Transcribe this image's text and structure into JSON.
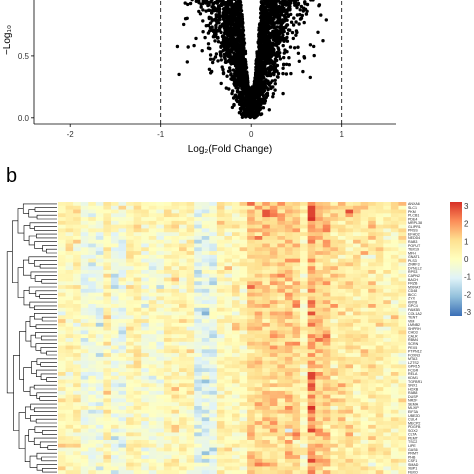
{
  "panel_a": {
    "label": "",
    "chart_data": {
      "type": "scatter",
      "title": "",
      "xlabel": "Log₂(Fold Change)",
      "ylabel": "−Log₁₀",
      "xticks": [
        "-2",
        "-1",
        "0",
        "1"
      ],
      "yticks": [
        "0.0",
        "0.5"
      ],
      "xlim": [
        -2.4,
        1.6
      ],
      "ylim": [
        -0.05,
        1.0
      ],
      "thresholds_x": [
        -1,
        1
      ],
      "grid": false,
      "point_color": "#000000",
      "description_shape": "V-shaped volcano"
    }
  },
  "panel_b": {
    "label": "b",
    "chart_data": {
      "type": "heatmap",
      "n_rows": 72,
      "n_cols": 46,
      "colorbar_ticks": [
        "3",
        "2",
        "1",
        "0",
        "-1",
        "-2",
        "-3"
      ],
      "color_range": [
        -3,
        3
      ],
      "colormap": [
        "#3b6fb6",
        "#91bfdb",
        "#e0f3f8",
        "#ffffbf",
        "#fee090",
        "#fc8d59",
        "#d73027"
      ],
      "row_labels": [
        "ANXA6",
        "SLC1",
        "PKM",
        "PLCB1",
        "PDE4",
        "MRPL38",
        "GLIPR1",
        "PRSS",
        "EFHD2",
        "NEDD4",
        "RAB3",
        "POFUT",
        "TBX19",
        "MFH",
        "GNAT1",
        "PLS3",
        "ZNRF3",
        "DYNLL2",
        "RPS3",
        "CAPN2",
        "BACH",
        "FRZB",
        "MXRA7",
        "CD48",
        "BICC",
        "ZYX",
        "KRT8",
        "GPC4",
        "FAM3B",
        "COL1A2",
        "TENT",
        "VIM",
        "LMNB2",
        "SHPRH",
        "CHD3",
        "CALR",
        "RBM4",
        "SCRN",
        "PEX5",
        "PTPN12",
        "FOXN3",
        "MTA3",
        "LZTS2",
        "GPR15",
        "FCGR",
        "RELA",
        "KDM1",
        "TGFBR1",
        "SNX1",
        "HOXB",
        "RAB8",
        "DUSP",
        "NR2F",
        "SEMA",
        "MLXIP",
        "EIF3A",
        "UBE2D",
        "CUL4",
        "MECP2",
        "PDGFB",
        "SOX2",
        "CLTA",
        "PEMT",
        "TSC2",
        "LIPE",
        "GAS6",
        "PRMT",
        "PHB",
        "CSF1",
        "SMAD",
        "XBP1",
        "FBXO"
      ]
    }
  }
}
